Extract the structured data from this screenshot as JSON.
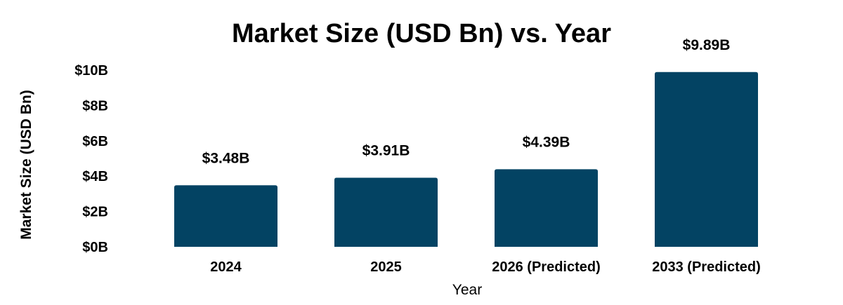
{
  "chart_data": {
    "type": "bar",
    "title": "Market Size (USD Bn) vs. Year",
    "xlabel": "Year",
    "ylabel": "Market Size (USD Bn)",
    "categories": [
      "2024",
      "2025",
      "2026 (Predicted)",
      "2033 (Predicted)"
    ],
    "values": [
      3.48,
      3.91,
      4.39,
      9.89
    ],
    "data_labels": [
      "$3.48B",
      "$3.91B",
      "$4.39B",
      "$9.89B"
    ],
    "ylim": [
      0,
      10
    ],
    "yticks": [
      0,
      2,
      4,
      6,
      8,
      10
    ],
    "ytick_labels": [
      "$0B",
      "$2B",
      "$4B",
      "$6B",
      "$8B",
      "$10B"
    ],
    "grid": false,
    "bar_color": "#034363"
  }
}
